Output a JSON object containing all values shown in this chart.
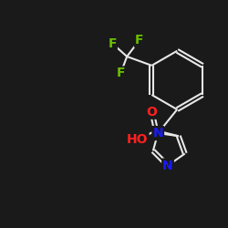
{
  "background_color": "#1a1a1a",
  "bond_color": "#e8e8e8",
  "bond_width": 1.5,
  "atom_colors": {
    "F": "#6abf00",
    "O": "#ff2020",
    "N": "#1a1aff",
    "C": "#e8e8e8",
    "H": "#e8e8e8"
  },
  "font_size_atoms": 10,
  "figsize": [
    2.5,
    2.5
  ],
  "dpi": 100
}
